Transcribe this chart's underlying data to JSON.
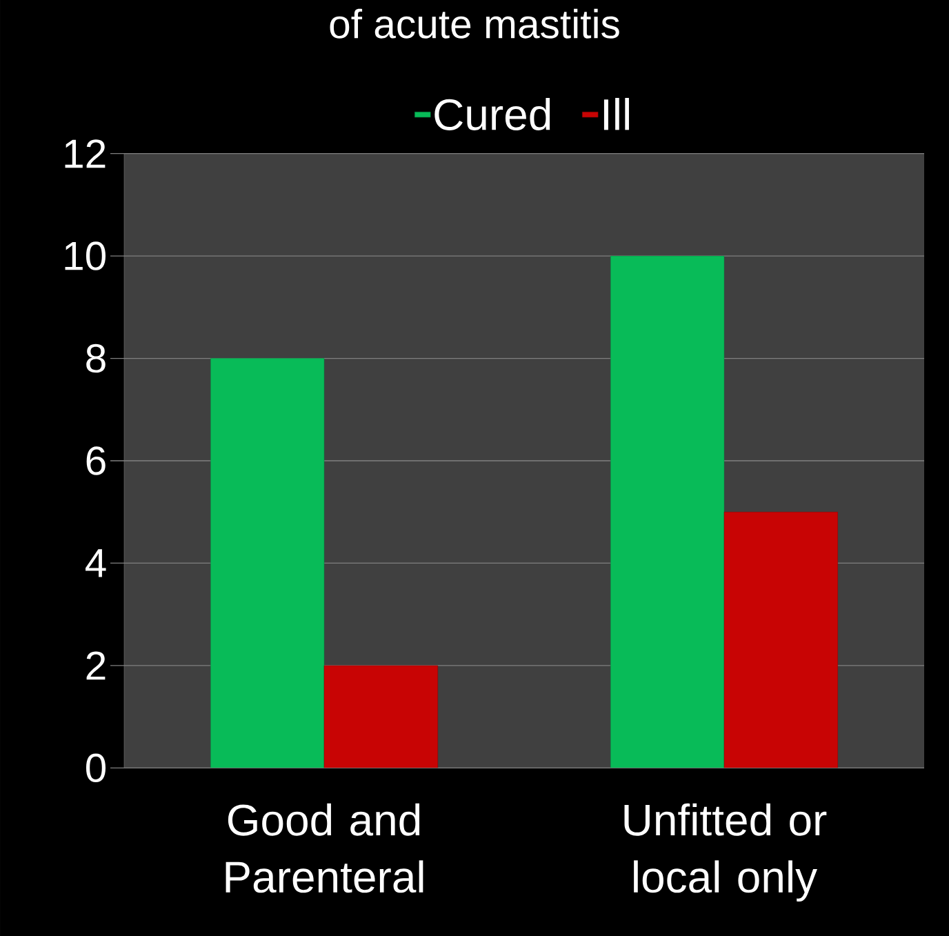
{
  "chart_data": {
    "type": "bar",
    "title": "of acute mastitis",
    "categories": [
      "Good and Parenteral",
      "Unfitted or local only"
    ],
    "series": [
      {
        "name": "Cured",
        "color": "#08bb58",
        "values": [
          8,
          10
        ]
      },
      {
        "name": "Ill",
        "color": "#c80404",
        "values": [
          2,
          5
        ]
      }
    ],
    "ylim": [
      0,
      12
    ],
    "yticks": [
      0,
      2,
      4,
      6,
      8,
      10,
      12
    ],
    "grid": "y",
    "legend": "top"
  }
}
